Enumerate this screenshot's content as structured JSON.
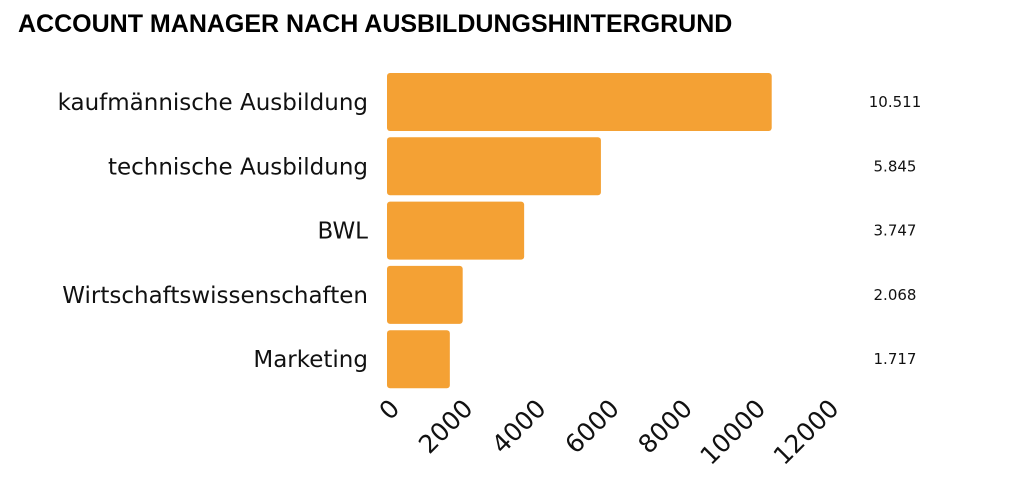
{
  "chart_data": {
    "type": "bar",
    "orientation": "horizontal",
    "title": "ACCOUNT MANAGER NACH AUSBILDUNGSHINTERGRUND",
    "categories": [
      "kaufmännische Ausbildung",
      "technische Ausbildung",
      "BWL",
      "Wirtschaftswissenschaften",
      "Marketing"
    ],
    "values": [
      10511,
      5845,
      3747,
      2068,
      1717
    ],
    "value_labels": [
      "10.511",
      "5.845",
      "3.747",
      "2.068",
      "1.717"
    ],
    "xlim": [
      0,
      12000
    ],
    "x_ticks": [
      0,
      2000,
      4000,
      6000,
      8000,
      10000,
      12000
    ],
    "x_tick_labels": [
      "0",
      "2000",
      "4000",
      "6000",
      "8000",
      "10000",
      "12000"
    ],
    "grid": false,
    "legend": "none",
    "bar_color": "#F4A134"
  }
}
